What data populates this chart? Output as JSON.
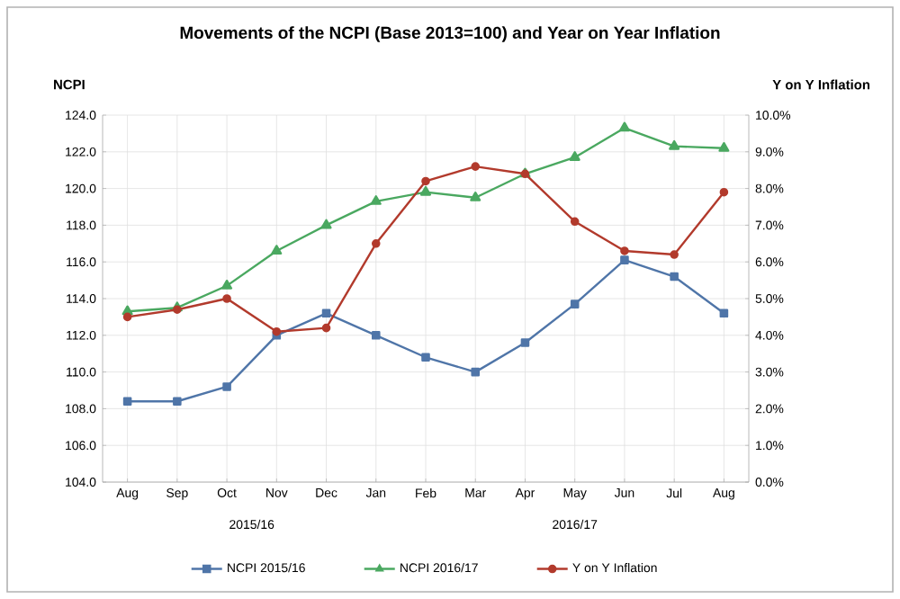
{
  "chart_data": {
    "type": "line",
    "title": "Movements of the NCPI (Base 2013=100) and Year on Year Inflation",
    "ylabel": "NCPI",
    "y2label": "Y on Y Inflation",
    "categories": [
      "Aug",
      "Sep",
      "Oct",
      "Nov",
      "Dec",
      "Jan",
      "Feb",
      "Mar",
      "Apr",
      "May",
      "Jun",
      "Jul",
      "Aug"
    ],
    "annotations": [
      "2015/16",
      "2016/17"
    ],
    "series": [
      {
        "name": "NCPI 2015/16",
        "color": "#4f75a8",
        "marker": "square",
        "values": [
          108.4,
          108.4,
          109.2,
          112.0,
          113.2,
          112.0,
          110.8,
          110.0,
          111.6,
          113.7,
          116.1,
          115.2,
          113.2
        ]
      },
      {
        "name": "NCPI 2016/17",
        "color": "#4aa860",
        "marker": "triangle",
        "values": [
          113.3,
          113.5,
          114.7,
          116.6,
          118.0,
          119.3,
          119.8,
          119.5,
          120.8,
          121.7,
          123.3,
          122.3,
          122.2
        ]
      },
      {
        "name": "Y on Y Inflation",
        "color": "#b23a2c",
        "marker": "circle",
        "axis": "y2",
        "values": [
          4.5,
          4.7,
          5.0,
          4.1,
          4.2,
          6.5,
          8.2,
          8.6,
          8.4,
          7.1,
          6.3,
          6.2,
          7.9
        ]
      }
    ],
    "ylim": [
      104,
      124
    ],
    "yticks": [
      {
        "value": 104,
        "label": "104.0"
      },
      {
        "value": 106,
        "label": "106.0"
      },
      {
        "value": 108,
        "label": "108.0"
      },
      {
        "value": 110,
        "label": "110.0"
      },
      {
        "value": 112,
        "label": "112.0"
      },
      {
        "value": 114,
        "label": "114.0"
      },
      {
        "value": 116,
        "label": "116.0"
      },
      {
        "value": 118,
        "label": "118.0"
      },
      {
        "value": 120,
        "label": "120.0"
      },
      {
        "value": 122,
        "label": "122.0"
      },
      {
        "value": 124,
        "label": "124.0"
      }
    ],
    "y2lim": [
      0,
      10
    ],
    "y2ticks": [
      {
        "value": 0,
        "label": "0.0%"
      },
      {
        "value": 1,
        "label": "1.0%"
      },
      {
        "value": 2,
        "label": "2.0%"
      },
      {
        "value": 3,
        "label": "3.0%"
      },
      {
        "value": 4,
        "label": "4.0%"
      },
      {
        "value": 5,
        "label": "5.0%"
      },
      {
        "value": 6,
        "label": "6.0%"
      },
      {
        "value": 7,
        "label": "7.0%"
      },
      {
        "value": 8,
        "label": "8.0%"
      },
      {
        "value": 9,
        "label": "9.0%"
      },
      {
        "value": 10,
        "label": "10.0%"
      }
    ],
    "grid": true,
    "legend": "bottom"
  }
}
